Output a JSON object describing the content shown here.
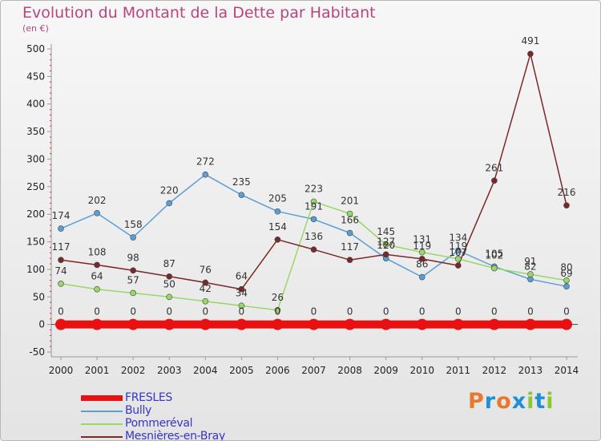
{
  "header": {
    "title": "Evolution du Montant de la Dette par Habitant",
    "unit": "(en €)"
  },
  "logo": {
    "letters": [
      "P",
      "r",
      "o",
      "x",
      "i",
      "t",
      "i"
    ],
    "colors": [
      "#e8782d",
      "#1f8fd6",
      "#e8782d",
      "#1f8fd6",
      "#8ac832",
      "#1f8fd6",
      "#8ac832"
    ]
  },
  "chart_data": {
    "type": "line",
    "title": "Evolution du Montant de la Dette par Habitant",
    "ylabel": "(en €)",
    "xlabel": "",
    "x": [
      "2000",
      "2001",
      "2002",
      "2003",
      "2004",
      "2005",
      "2006",
      "2007",
      "2008",
      "2009",
      "2010",
      "2011",
      "2012",
      "2013",
      "2014"
    ],
    "ylim": [
      -50,
      500
    ],
    "yticks": [
      "-50",
      "0",
      "50",
      "100",
      "150",
      "200",
      "250",
      "300",
      "350",
      "400",
      "450",
      "500"
    ],
    "grid": false,
    "legend": "bottom-left",
    "series": [
      {
        "name": "FRESLES",
        "color": "#e81010",
        "values": [
          0,
          0,
          0,
          0,
          0,
          0,
          0,
          0,
          0,
          0,
          0,
          0,
          0,
          0,
          0
        ],
        "labels": [
          "0",
          "0",
          "0",
          "0",
          "0",
          "0",
          "0",
          "0",
          "0",
          "0",
          "0",
          "0",
          "0",
          "0",
          "0"
        ]
      },
      {
        "name": "Bully",
        "color": "#5a9ed6",
        "values": [
          174,
          202,
          158,
          220,
          272,
          235,
          205,
          191,
          166,
          120,
          86,
          134,
          105,
          82,
          69
        ],
        "labels": [
          "174",
          "202",
          "158",
          "220",
          "272",
          "235",
          "205",
          "191",
          "166",
          "120",
          "86",
          "134",
          "105",
          "82",
          "69"
        ]
      },
      {
        "name": "Pommeréval",
        "color": "#98d868",
        "values": [
          74,
          64,
          57,
          50,
          42,
          34,
          26,
          223,
          201,
          145,
          131,
          119,
          102,
          91,
          80
        ],
        "labels": [
          "74",
          "64",
          "57",
          "50",
          "42",
          "34",
          "26",
          "223",
          "201",
          "145",
          "131",
          "119",
          "102",
          "91",
          "80"
        ]
      },
      {
        "name": "Mesnières-en-Bray",
        "color": "#7a2828",
        "values": [
          117,
          108,
          98,
          87,
          76,
          64,
          154,
          136,
          117,
          127,
          119,
          107,
          261,
          491,
          216
        ],
        "labels": [
          "117",
          "108",
          "98",
          "87",
          "76",
          "64",
          "154",
          "136",
          "117",
          "127",
          "119",
          "107",
          "261",
          "491",
          "216"
        ]
      }
    ]
  }
}
